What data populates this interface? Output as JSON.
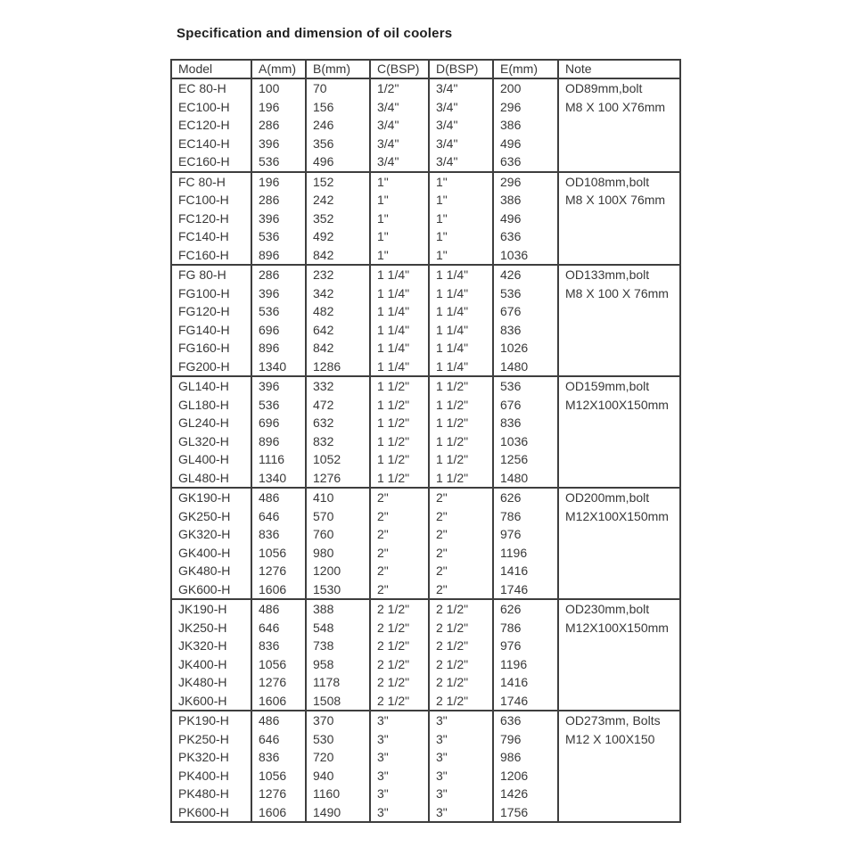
{
  "page": {
    "title": "Specification and dimension of oil coolers"
  },
  "table": {
    "columns": [
      "Model",
      "A(mm)",
      "B(mm)",
      "C(BSP)",
      "D(BSP)",
      "E(mm)",
      "Note"
    ],
    "groups": [
      {
        "note_lines": [
          "OD89mm,bolt",
          "M8 X 100 X76mm"
        ],
        "rows": [
          [
            "EC 80-H",
            "100",
            "70",
            "1/2\"",
            "3/4\"",
            "200"
          ],
          [
            "EC100-H",
            "196",
            "156",
            "3/4\"",
            "3/4\"",
            "296"
          ],
          [
            "EC120-H",
            "286",
            "246",
            "3/4\"",
            "3/4\"",
            "386"
          ],
          [
            "EC140-H",
            "396",
            "356",
            "3/4\"",
            "3/4\"",
            "496"
          ],
          [
            "EC160-H",
            "536",
            "496",
            "3/4\"",
            "3/4\"",
            "636"
          ]
        ]
      },
      {
        "note_lines": [
          "OD108mm,bolt",
          "M8 X 100X 76mm"
        ],
        "rows": [
          [
            "FC 80-H",
            "196",
            "152",
            "1\"",
            "1\"",
            "296"
          ],
          [
            "FC100-H",
            "286",
            "242",
            "1\"",
            "1\"",
            "386"
          ],
          [
            "FC120-H",
            "396",
            "352",
            "1\"",
            "1\"",
            "496"
          ],
          [
            "FC140-H",
            "536",
            "492",
            "1\"",
            "1\"",
            "636"
          ],
          [
            "FC160-H",
            "896",
            "842",
            "1\"",
            "1\"",
            "1036"
          ]
        ]
      },
      {
        "note_lines": [
          "OD133mm,bolt",
          "M8 X 100 X 76mm"
        ],
        "rows": [
          [
            "FG 80-H",
            "286",
            "232",
            "1 1/4\"",
            "1 1/4\"",
            "426"
          ],
          [
            "FG100-H",
            "396",
            "342",
            "1 1/4\"",
            "1 1/4\"",
            "536"
          ],
          [
            "FG120-H",
            "536",
            "482",
            "1 1/4\"",
            "1 1/4\"",
            "676"
          ],
          [
            "FG140-H",
            "696",
            "642",
            "1 1/4\"",
            "1 1/4\"",
            "836"
          ],
          [
            "FG160-H",
            "896",
            "842",
            "1 1/4\"",
            "1 1/4\"",
            "1026"
          ],
          [
            "FG200-H",
            "1340",
            "1286",
            "1 1/4\"",
            "1 1/4\"",
            "1480"
          ]
        ]
      },
      {
        "note_lines": [
          "OD159mm,bolt",
          "M12X100X150mm"
        ],
        "rows": [
          [
            "GL140-H",
            "396",
            "332",
            "1 1/2\"",
            "1 1/2\"",
            "536"
          ],
          [
            "GL180-H",
            "536",
            "472",
            "1 1/2\"",
            "1 1/2\"",
            "676"
          ],
          [
            "GL240-H",
            "696",
            "632",
            "1 1/2\"",
            "1 1/2\"",
            "836"
          ],
          [
            "GL320-H",
            "896",
            "832",
            "1 1/2\"",
            "1 1/2\"",
            "1036"
          ],
          [
            "GL400-H",
            "1116",
            "1052",
            "1 1/2\"",
            "1 1/2\"",
            "1256"
          ],
          [
            "GL480-H",
            "1340",
            "1276",
            "1 1/2\"",
            "1 1/2\"",
            "1480"
          ]
        ]
      },
      {
        "note_lines": [
          "OD200mm,bolt",
          "M12X100X150mm"
        ],
        "rows": [
          [
            "GK190-H",
            "486",
            "410",
            "2\"",
            "2\"",
            "626"
          ],
          [
            "GK250-H",
            "646",
            "570",
            "2\"",
            "2\"",
            "786"
          ],
          [
            "GK320-H",
            "836",
            "760",
            "2\"",
            "2\"",
            "976"
          ],
          [
            "GK400-H",
            "1056",
            "980",
            "2\"",
            "2\"",
            "1196"
          ],
          [
            "GK480-H",
            "1276",
            "1200",
            "2\"",
            "2\"",
            "1416"
          ],
          [
            "GK600-H",
            "1606",
            "1530",
            "2\"",
            "2\"",
            "1746"
          ]
        ]
      },
      {
        "note_lines": [
          "OD230mm,bolt",
          "M12X100X150mm"
        ],
        "rows": [
          [
            "JK190-H",
            "486",
            "388",
            "2 1/2\"",
            "2 1/2\"",
            "626"
          ],
          [
            "JK250-H",
            "646",
            "548",
            "2 1/2\"",
            "2 1/2\"",
            "786"
          ],
          [
            "JK320-H",
            "836",
            "738",
            "2 1/2\"",
            "2 1/2\"",
            "976"
          ],
          [
            "JK400-H",
            "1056",
            "958",
            "2 1/2\"",
            "2 1/2\"",
            "1196"
          ],
          [
            "JK480-H",
            "1276",
            "1178",
            "2 1/2\"",
            "2 1/2\"",
            "1416"
          ],
          [
            "JK600-H",
            "1606",
            "1508",
            "2 1/2\"",
            "2 1/2\"",
            "1746"
          ]
        ]
      },
      {
        "note_lines": [
          "OD273mm,  Bolts",
          "M12 X 100X150"
        ],
        "rows": [
          [
            "PK190-H",
            "486",
            "370",
            "3\"",
            "3\"",
            "636"
          ],
          [
            "PK250-H",
            "646",
            "530",
            "3\"",
            "3\"",
            "796"
          ],
          [
            "PK320-H",
            "836",
            "720",
            "3\"",
            "3\"",
            "986"
          ],
          [
            "PK400-H",
            "1056",
            "940",
            "3\"",
            "3\"",
            "1206"
          ],
          [
            "PK480-H",
            "1276",
            "1160",
            "3\"",
            "3\"",
            "1426"
          ],
          [
            "PK600-H",
            "1606",
            "1490",
            "3\"",
            "3\"",
            "1756"
          ]
        ]
      }
    ]
  }
}
